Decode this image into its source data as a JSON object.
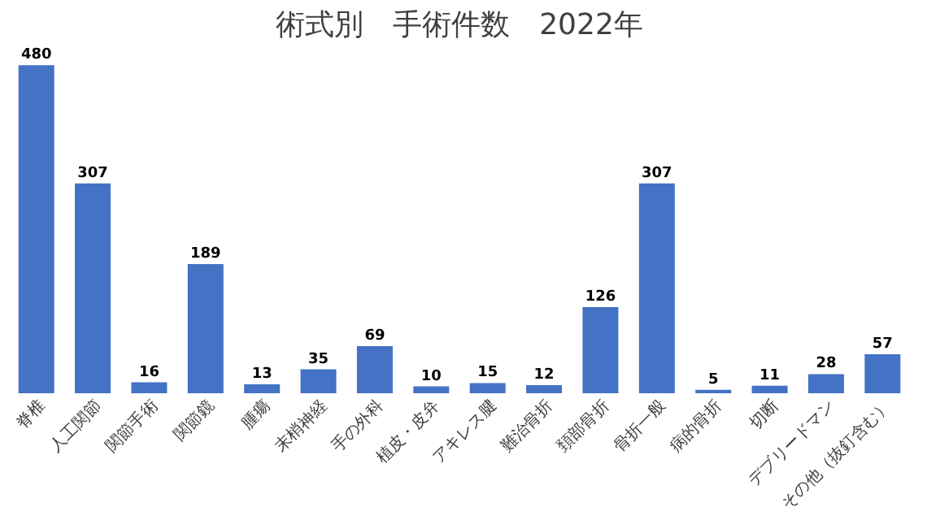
{
  "chart_data": {
    "type": "bar",
    "title": "術式別　手術件数　2022年",
    "categories": [
      "脊椎",
      "人工関節",
      "関節手術",
      "関節鏡",
      "腫瘍",
      "末梢神経",
      "手の外科",
      "植皮・皮弁",
      "アキレス腱",
      "難治骨折",
      "頚部骨折",
      "骨折一般",
      "病的骨折",
      "切断",
      "デブリードマン",
      "その他（抜釘含む）"
    ],
    "values": [
      480,
      307,
      16,
      189,
      13,
      35,
      69,
      10,
      15,
      12,
      126,
      307,
      5,
      11,
      28,
      57
    ],
    "color": "#4472c4",
    "data_labels": true,
    "grid": false
  }
}
